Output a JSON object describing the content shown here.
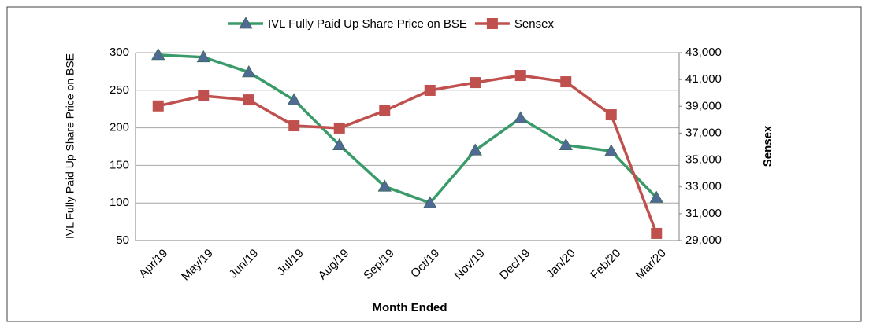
{
  "chart_data": {
    "type": "line",
    "categories": [
      "Apr/19",
      "May/19",
      "Jun/19",
      "Jul/19",
      "Aug/19",
      "Sep/19",
      "Oct/19",
      "Nov/19",
      "Dec/19",
      "Jan/20",
      "Feb/20",
      "Mar/20"
    ],
    "x_label": "Month Ended",
    "y_label": "IVL Fully Paid Up Share Price on BSE",
    "y2_label": "Sensex",
    "series": [
      {
        "name": "IVL Fully Paid Up Share Price on BSE",
        "color": "#3a9b6a",
        "marker": "triangle",
        "marker_color": "#4f6b95",
        "values": [
          297,
          294,
          274,
          237,
          177,
          122,
          100,
          170,
          213,
          177,
          169,
          107
        ]
      },
      {
        "name": "Sensex",
        "color": "#c0504d",
        "marker": "square",
        "marker_color": "#c0504d",
        "axis": "y2",
        "values": [
          39030,
          39780,
          39480,
          37550,
          37380,
          38670,
          40190,
          40770,
          41300,
          40830,
          38370,
          29530
        ]
      }
    ],
    "ylim": [
      50,
      300
    ],
    "yticks": [
      50,
      100,
      150,
      200,
      250,
      300
    ],
    "y2lim": [
      29000,
      43000
    ],
    "y2ticks": [
      {
        "value": 29000,
        "label": "29,000"
      },
      {
        "value": 31000,
        "label": "31,000"
      },
      {
        "value": 33000,
        "label": "33,000"
      },
      {
        "value": 35000,
        "label": "35,000"
      },
      {
        "value": 37000,
        "label": "37,000"
      },
      {
        "value": 39000,
        "label": "39,000"
      },
      {
        "value": 41000,
        "label": "41,000"
      },
      {
        "value": 43000,
        "label": "43,000"
      }
    ],
    "grid": true,
    "legend": "top"
  }
}
